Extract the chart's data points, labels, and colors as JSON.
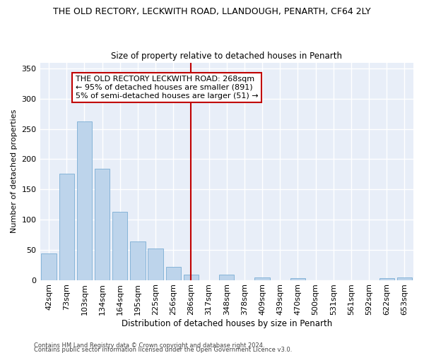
{
  "title1": "THE OLD RECTORY, LECKWITH ROAD, LLANDOUGH, PENARTH, CF64 2LY",
  "title2": "Size of property relative to detached houses in Penarth",
  "xlabel": "Distribution of detached houses by size in Penarth",
  "ylabel": "Number of detached properties",
  "footer1": "Contains HM Land Registry data © Crown copyright and database right 2024.",
  "footer2": "Contains public sector information licensed under the Open Government Licence v3.0.",
  "categories": [
    "42sqm",
    "73sqm",
    "103sqm",
    "134sqm",
    "164sqm",
    "195sqm",
    "225sqm",
    "256sqm",
    "286sqm",
    "317sqm",
    "348sqm",
    "378sqm",
    "409sqm",
    "439sqm",
    "470sqm",
    "500sqm",
    "531sqm",
    "561sqm",
    "592sqm",
    "622sqm",
    "653sqm"
  ],
  "values": [
    44,
    176,
    262,
    184,
    113,
    64,
    52,
    22,
    9,
    0,
    9,
    0,
    4,
    0,
    3,
    0,
    0,
    0,
    0,
    3,
    4
  ],
  "bar_color": "#bdd4eb",
  "bar_edge_color": "#7aadd4",
  "highlight_index": 8,
  "highlight_color": "#c00000",
  "highlight_label": "THE OLD RECTORY LECKWITH ROAD: 268sqm",
  "annotation_line1": "← 95% of detached houses are smaller (891)",
  "annotation_line2": "5% of semi-detached houses are larger (51) →",
  "ylim": [
    0,
    360
  ],
  "yticks": [
    0,
    50,
    100,
    150,
    200,
    250,
    300,
    350
  ],
  "bg_color": "#e8eef8",
  "grid_color": "#ffffff",
  "title1_fontsize": 9,
  "title2_fontsize": 8.5,
  "axis_label_fontsize": 8,
  "tick_fontsize": 8,
  "xlabel_fontsize": 8.5,
  "ylabel_fontsize": 8,
  "annotation_fontsize": 8,
  "footer_fontsize": 6
}
